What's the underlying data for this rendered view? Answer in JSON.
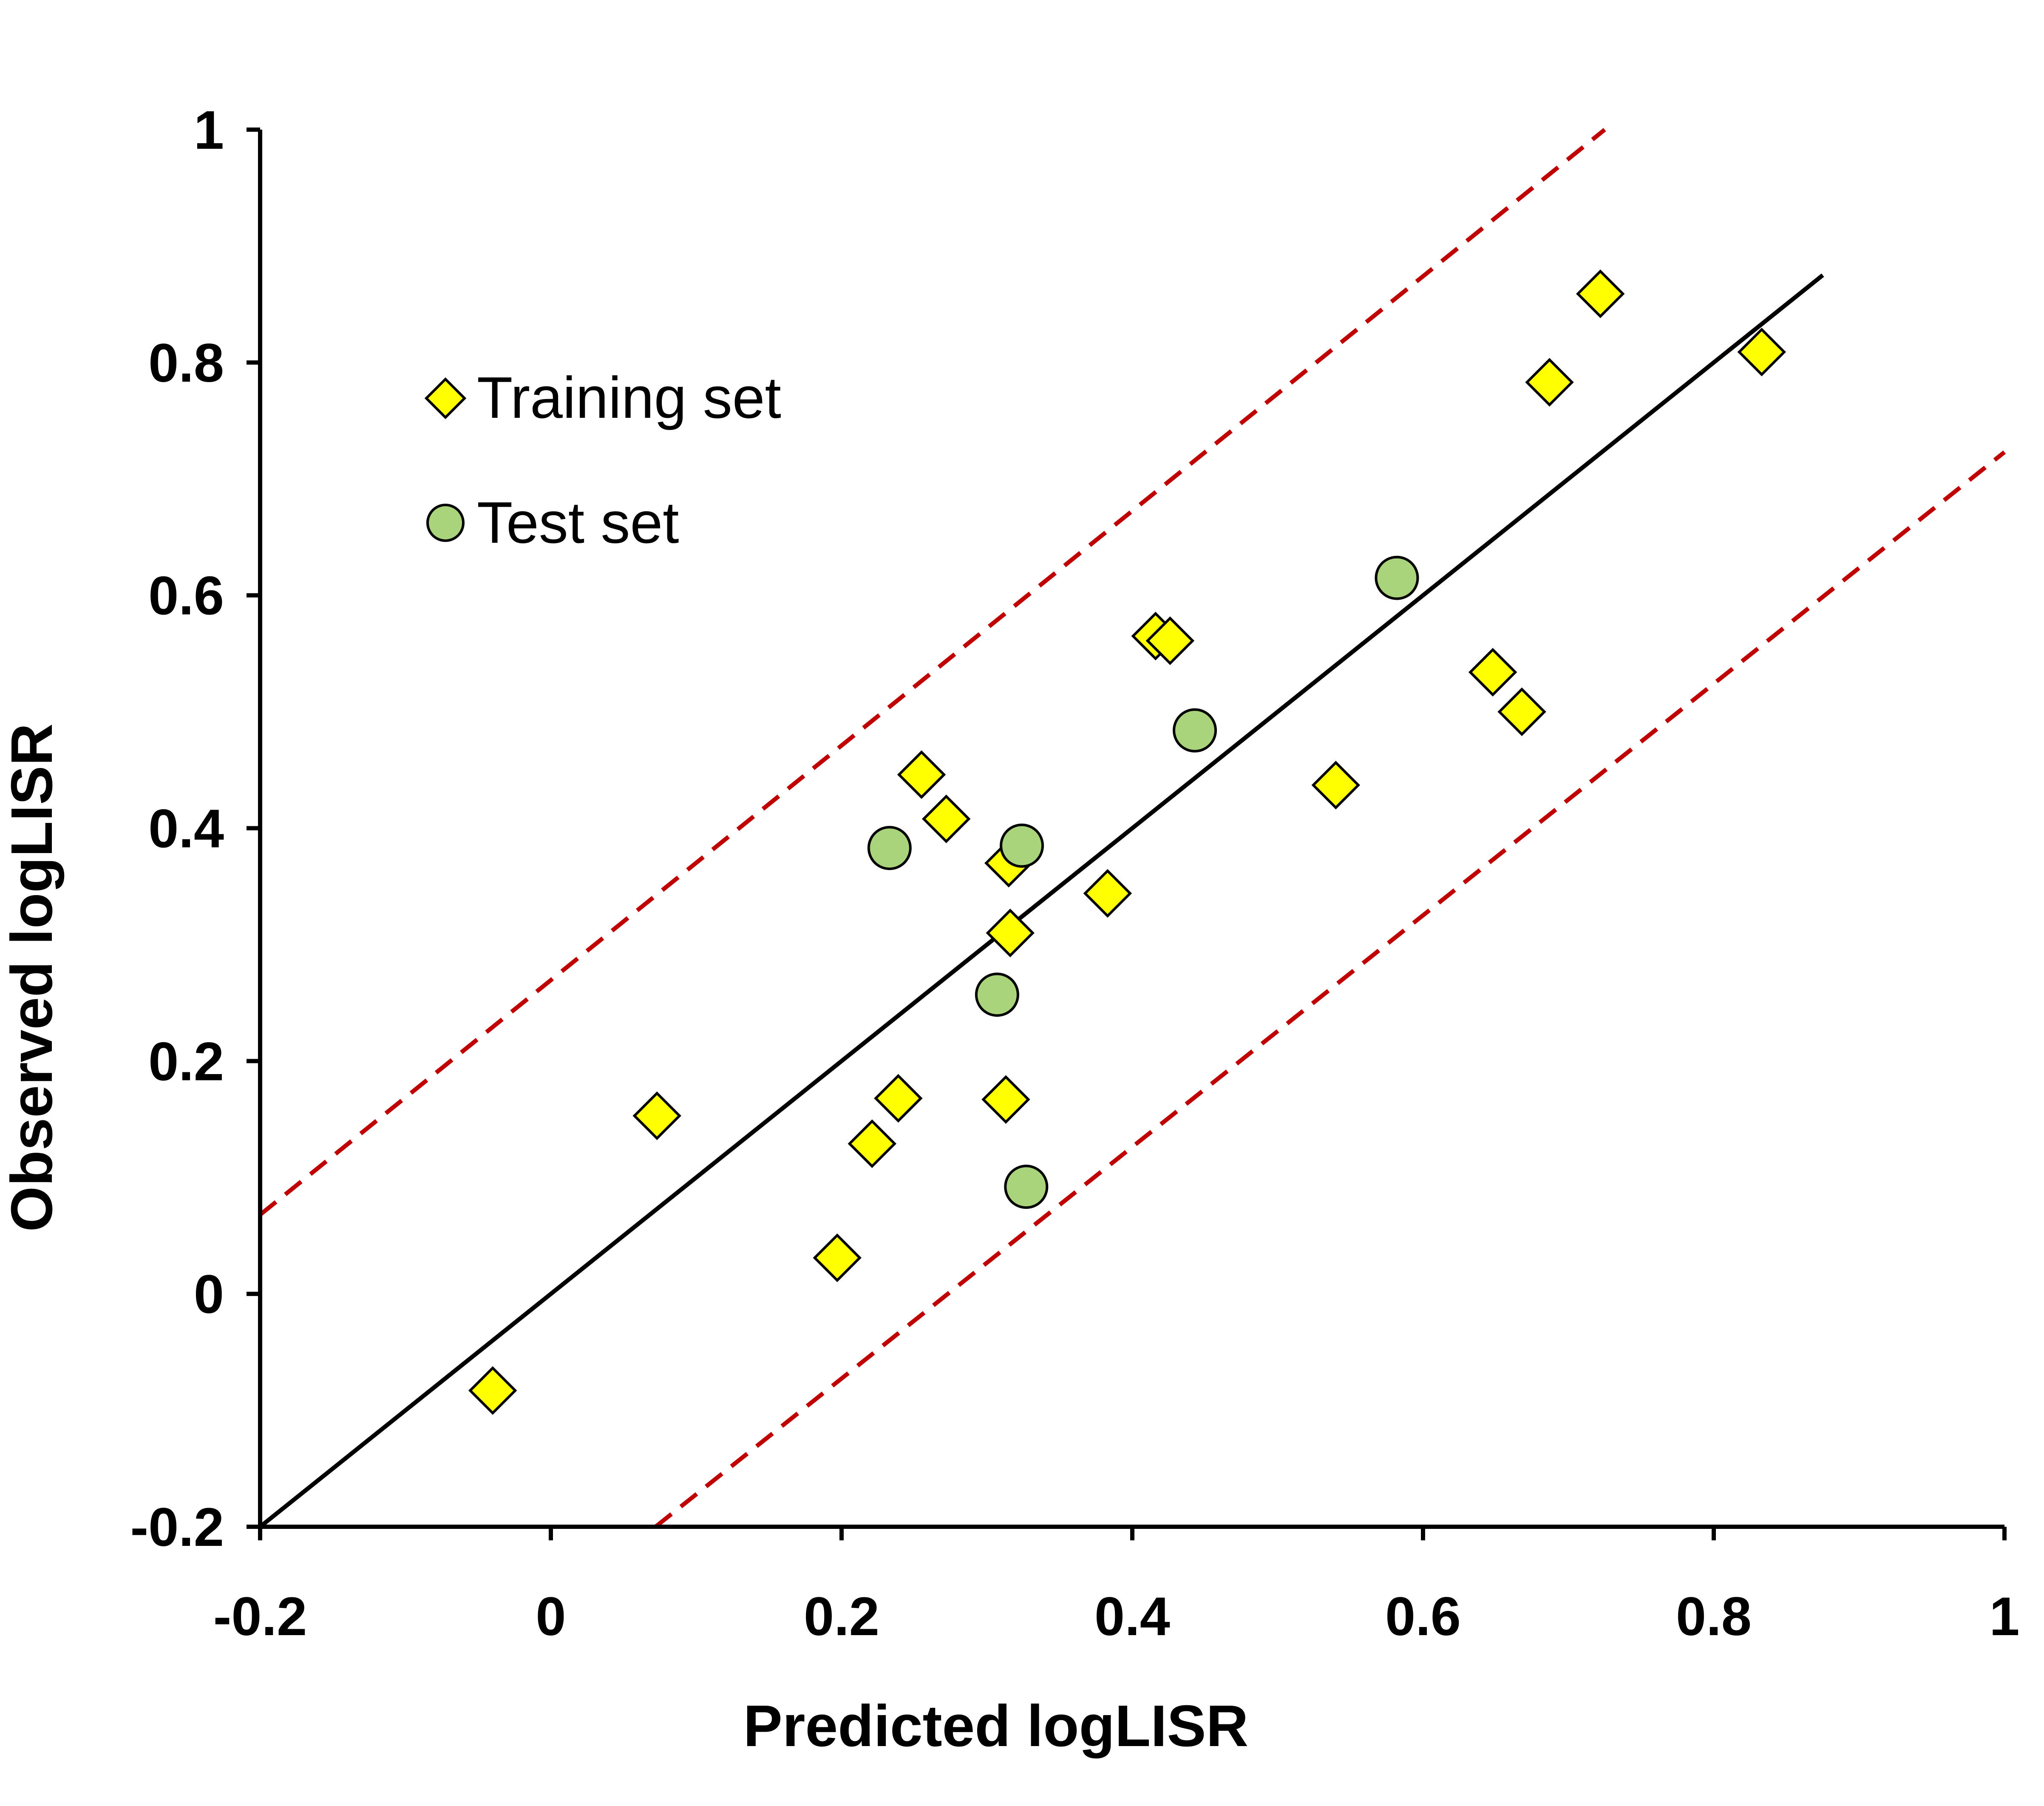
{
  "chart_data": {
    "type": "scatter",
    "xlabel": "Predicted logLISR",
    "ylabel": "Observed logLISR",
    "xlim": [
      -0.2,
      1
    ],
    "ylim": [
      -0.2,
      1
    ],
    "xticks": [
      "-0.2",
      "0",
      "0.2",
      "0.4",
      "0.6",
      "0.8",
      "1"
    ],
    "yticks": [
      "-0.2",
      "0",
      "0.2",
      "0.4",
      "0.6",
      "0.8",
      "1"
    ],
    "grid": false,
    "legend_position": "top-left",
    "reference_lines": [
      {
        "points": [
          [
            -0.2,
            -0.2
          ],
          [
            0.875,
            0.875
          ]
        ],
        "style": "solid",
        "color": "#000000"
      },
      {
        "points": [
          [
            -0.2,
            0.068
          ],
          [
            0.725,
            1.0
          ]
        ],
        "style": "dashed",
        "color": "#c00000"
      },
      {
        "points": [
          [
            0.072,
            -0.2
          ],
          [
            1.0,
            0.723
          ]
        ],
        "style": "dashed",
        "color": "#c00000"
      }
    ],
    "series": [
      {
        "name": "Training set",
        "marker": "diamond",
        "color": "#ffff00",
        "points": [
          [
            -0.04,
            -0.083
          ],
          [
            0.073,
            0.153
          ],
          [
            0.197,
            0.031
          ],
          [
            0.221,
            0.129
          ],
          [
            0.239,
            0.168
          ],
          [
            0.255,
            0.446
          ],
          [
            0.272,
            0.408
          ],
          [
            0.315,
            0.37
          ],
          [
            0.316,
            0.31
          ],
          [
            0.313,
            0.167
          ],
          [
            0.383,
            0.344
          ],
          [
            0.416,
            0.565
          ],
          [
            0.426,
            0.561
          ],
          [
            0.54,
            0.437
          ],
          [
            0.648,
            0.534
          ],
          [
            0.668,
            0.5
          ],
          [
            0.687,
            0.783
          ],
          [
            0.722,
            0.859
          ],
          [
            0.833,
            0.809
          ]
        ]
      },
      {
        "name": "Test set",
        "marker": "circle",
        "color": "#a9d47b",
        "points": [
          [
            0.233,
            0.383
          ],
          [
            0.324,
            0.385
          ],
          [
            0.307,
            0.257
          ],
          [
            0.327,
            0.092
          ],
          [
            0.443,
            0.484
          ],
          [
            0.582,
            0.615
          ]
        ]
      }
    ]
  }
}
